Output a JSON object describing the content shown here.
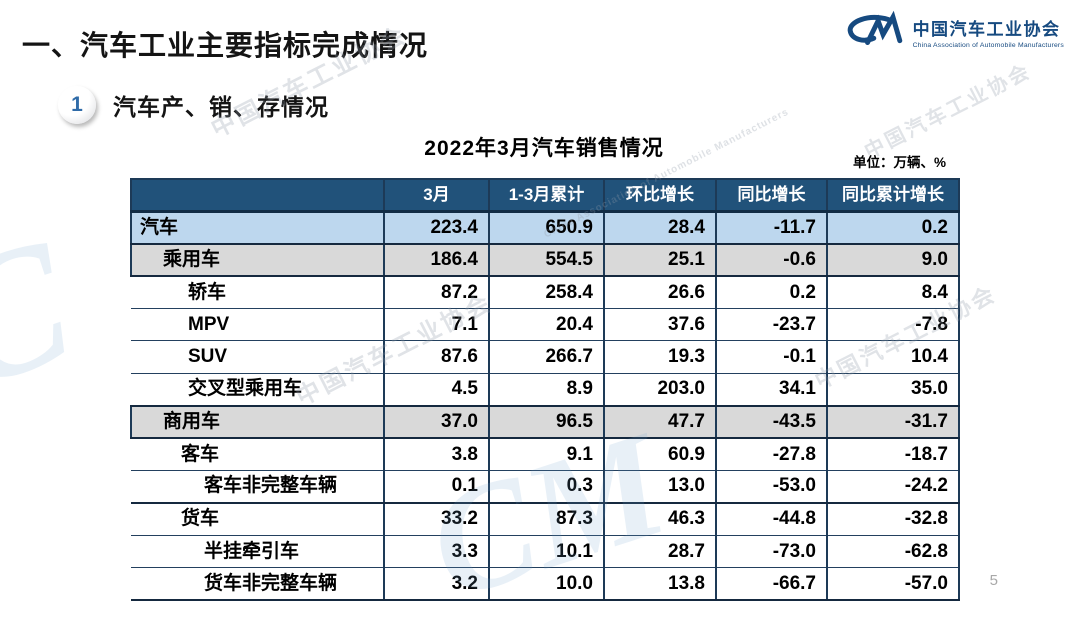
{
  "page": {
    "title": "一、汽车工业主要指标完成情况",
    "page_number": "5"
  },
  "logo": {
    "mark": "CM",
    "name_cn": "中国汽车工业协会",
    "name_en": "China Association of Automobile Manufacturers"
  },
  "section": {
    "badge": "1",
    "label": "汽车产、销、存情况"
  },
  "table": {
    "title": "2022年3月汽车销售情况",
    "unit": "单位：万辆、%",
    "columns": [
      "",
      "3月",
      "1-3月累计",
      "环比增长",
      "同比增长",
      "同比累计增长"
    ],
    "rows": [
      {
        "label": "汽车",
        "level": 0,
        "style": "total",
        "sep": true,
        "values": [
          "223.4",
          "650.9",
          "28.4",
          "-11.7",
          "0.2"
        ]
      },
      {
        "label": "乘用车",
        "level": 1,
        "style": "group",
        "sep": true,
        "values": [
          "186.4",
          "554.5",
          "25.1",
          "-0.6",
          "9.0"
        ]
      },
      {
        "label": "轿车",
        "level": 2,
        "style": "plain",
        "sep": false,
        "values": [
          "87.2",
          "258.4",
          "26.6",
          "0.2",
          "8.4"
        ]
      },
      {
        "label": "MPV",
        "level": 2,
        "style": "plain",
        "sep": false,
        "values": [
          "7.1",
          "20.4",
          "37.6",
          "-23.7",
          "-7.8"
        ]
      },
      {
        "label": "SUV",
        "level": 2,
        "style": "plain",
        "sep": false,
        "values": [
          "87.6",
          "266.7",
          "19.3",
          "-0.1",
          "10.4"
        ]
      },
      {
        "label": "交叉型乘用车",
        "level": 2,
        "style": "plain",
        "sep": true,
        "values": [
          "4.5",
          "8.9",
          "203.0",
          "34.1",
          "35.0"
        ]
      },
      {
        "label": "商用车",
        "level": 1,
        "style": "group",
        "sep": true,
        "values": [
          "37.0",
          "96.5",
          "47.7",
          "-43.5",
          "-31.7"
        ]
      },
      {
        "label": "客车",
        "level": 1.5,
        "style": "plain",
        "sep": false,
        "values": [
          "3.8",
          "9.1",
          "60.9",
          "-27.8",
          "-18.7"
        ]
      },
      {
        "label": "客车非完整车辆",
        "level": 3,
        "style": "plain",
        "sep": true,
        "values": [
          "0.1",
          "0.3",
          "13.0",
          "-53.0",
          "-24.2"
        ]
      },
      {
        "label": "货车",
        "level": 1.5,
        "style": "plain",
        "sep": false,
        "values": [
          "33.2",
          "87.3",
          "46.3",
          "-44.8",
          "-32.8"
        ]
      },
      {
        "label": "半挂牵引车",
        "level": 3,
        "style": "plain",
        "sep": false,
        "values": [
          "3.3",
          "10.1",
          "28.7",
          "-73.0",
          "-62.8"
        ]
      },
      {
        "label": "货车非完整车辆",
        "level": 3,
        "style": "plain",
        "sep": true,
        "values": [
          "3.2",
          "10.0",
          "13.8",
          "-66.7",
          "-57.0"
        ]
      }
    ]
  },
  "colors": {
    "header_bg": "#21527a",
    "total_row_bg": "#bdd7ee",
    "group_row_bg": "#d9d9d9",
    "table_border": "#1d3a57",
    "logo_blue": "#164a80",
    "badge_number_blue": "#2f6ba8",
    "page_number_gray": "#a8a8a8"
  }
}
